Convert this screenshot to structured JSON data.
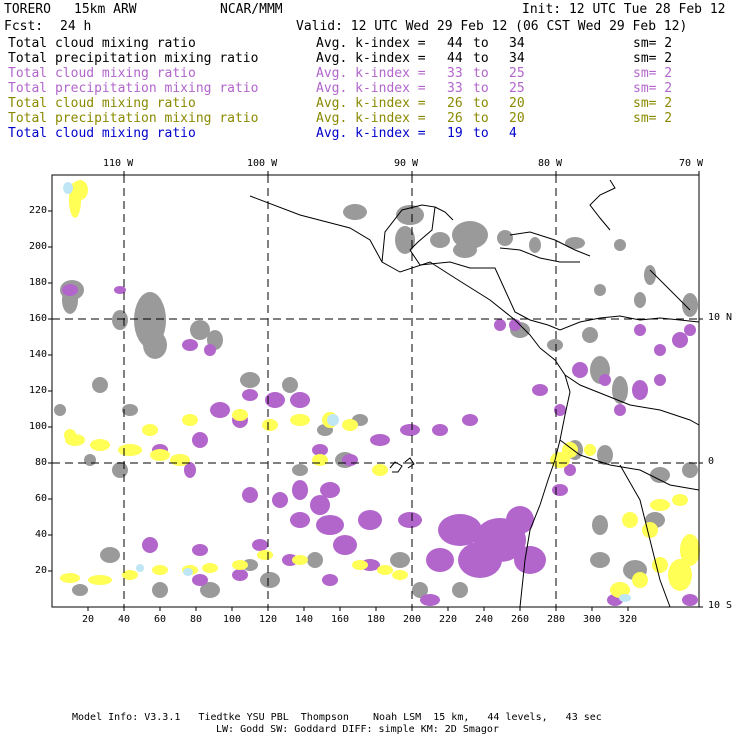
{
  "header": {
    "model": "TORERO",
    "resolution": "15km ARW",
    "org": "NCAR/MMM",
    "init": "Init: 12 UTC Tue 28 Feb 12",
    "fcst_label": "Fcst:",
    "fcst_value": "24 h",
    "valid": "Valid: 12 UTC Wed 29 Feb 12 (06 CST Wed 29 Feb 12)"
  },
  "fields": [
    {
      "name": "Total cloud mixing ratio",
      "kindex_label": "Avg. k-index =",
      "from": "44",
      "to_word": "to",
      "to": "34",
      "sm": "sm= 2",
      "color": "#000000"
    },
    {
      "name": "Total precipitation mixing ratio",
      "kindex_label": "Avg. k-index =",
      "from": "44",
      "to_word": "to",
      "to": "34",
      "sm": "sm= 2",
      "color": "#000000"
    },
    {
      "name": "Total cloud mixing ratio",
      "kindex_label": "Avg. k-index =",
      "from": "33",
      "to_word": "to",
      "to": "25",
      "sm": "sm= 2",
      "color": "#b266cc"
    },
    {
      "name": "Total precipitation mixing ratio",
      "kindex_label": "Avg. k-index =",
      "from": "33",
      "to_word": "to",
      "to": "25",
      "sm": "sm= 2",
      "color": "#b266cc"
    },
    {
      "name": "Total cloud mixing ratio",
      "kindex_label": "Avg. k-index =",
      "from": "26",
      "to_word": "to",
      "to": "20",
      "sm": "sm= 2",
      "color": "#8a8a00"
    },
    {
      "name": "Total precipitation mixing ratio",
      "kindex_label": "Avg. k-index =",
      "from": "26",
      "to_word": "to",
      "to": "20",
      "sm": "sm= 2",
      "color": "#8a8a00"
    },
    {
      "name": "Total cloud mixing ratio",
      "kindex_label": "Avg. k-index =",
      "from": "19",
      "to_word": "to",
      "to": "4",
      "sm": "",
      "color": "#0000cc"
    }
  ],
  "map": {
    "lon_labels": [
      "110 W",
      "100 W",
      "90 W",
      "80 W",
      "70 W"
    ],
    "lat_labels": [
      "10 N",
      "0",
      "10 S"
    ],
    "x_ticks": [
      "20",
      "40",
      "60",
      "80",
      "100",
      "120",
      "140",
      "160",
      "180",
      "200",
      "220",
      "240",
      "260",
      "280",
      "300",
      "320"
    ],
    "y_ticks": [
      "220",
      "200",
      "180",
      "160",
      "140",
      "120",
      "100",
      "80",
      "60",
      "40",
      "20"
    ],
    "colors": {
      "gray": "#9a9a9a",
      "purple": "#b266cc",
      "yellow": "#ffff55",
      "lightblue": "#bfe6f5",
      "border": "#000000"
    }
  },
  "footer": {
    "line1": "Model Info: V3.3.1   Tiedtke YSU PBL  Thompson    Noah LSM  15 km,   44 levels,   43 sec",
    "line2": "LW: Godd SW: Goddard DIFF: simple KM: 2D Smagor"
  }
}
